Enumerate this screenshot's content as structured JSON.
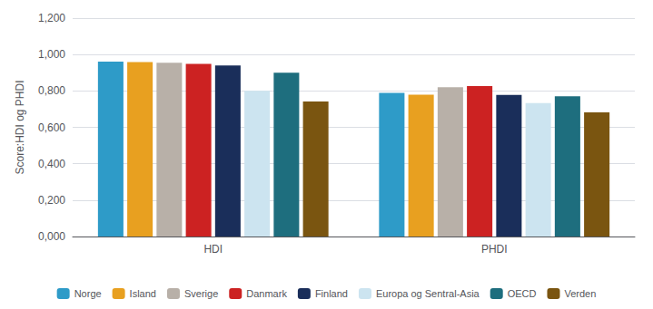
{
  "chart_data": {
    "type": "bar",
    "categories": [
      "HDI",
      "PHDI"
    ],
    "series": [
      {
        "name": "Norge",
        "color": "#2e9bc8",
        "values": [
          0.961,
          0.789
        ]
      },
      {
        "name": "Island",
        "color": "#e8a020",
        "values": [
          0.959,
          0.779
        ]
      },
      {
        "name": "Sverige",
        "color": "#b8b0a8",
        "values": [
          0.955,
          0.82
        ]
      },
      {
        "name": "Danmark",
        "color": "#cc2222",
        "values": [
          0.948,
          0.826
        ]
      },
      {
        "name": "Finland",
        "color": "#1a2e5a",
        "values": [
          0.94,
          0.778
        ]
      },
      {
        "name": "Europa og Sentral-Asia",
        "color": "#cce4f0",
        "values": [
          0.8,
          0.733
        ]
      },
      {
        "name": "OECD",
        "color": "#1e6e7e",
        "values": [
          0.9,
          0.771
        ]
      },
      {
        "name": "Verden",
        "color": "#7a5510",
        "values": [
          0.742,
          0.682
        ]
      }
    ],
    "ylabel": "Score:HDI og PHDI",
    "ylim": [
      0,
      1.2
    ],
    "yticks": [
      {
        "value": 0.0,
        "label": "0,000"
      },
      {
        "value": 0.2,
        "label": "0,200"
      },
      {
        "value": 0.4,
        "label": "0,400"
      },
      {
        "value": 0.6,
        "label": "0,600"
      },
      {
        "value": 0.8,
        "label": "0,800"
      },
      {
        "value": 1.0,
        "label": "1,000"
      },
      {
        "value": 1.2,
        "label": "1,200"
      }
    ],
    "grid": true,
    "legend": "bottom"
  }
}
